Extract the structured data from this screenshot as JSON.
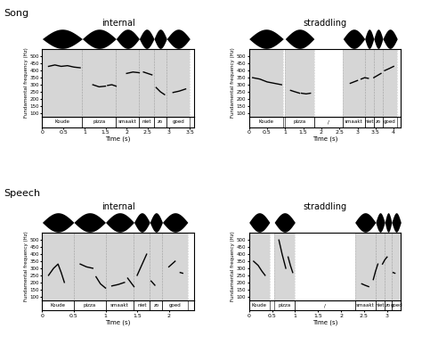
{
  "row_labels": [
    "Song",
    "Speech"
  ],
  "chart_data": [
    {
      "type": "line",
      "title": "internal",
      "xlabel": "Time (s)",
      "ylabel": "Fundamental frequency (Hz)",
      "xlim": [
        0,
        3.6
      ],
      "xticks": [
        0,
        0.5,
        1,
        1.5,
        2,
        2.5,
        3,
        3.5
      ],
      "ylim": [
        75,
        550
      ],
      "yticks": [
        100,
        150,
        200,
        250,
        300,
        350,
        400,
        450,
        500
      ],
      "color": "#000000",
      "x": [
        0.15,
        0.3,
        0.45,
        0.6,
        0.75,
        0.9,
        null,
        1.2,
        1.35,
        1.5,
        null,
        1.55,
        1.65,
        1.75,
        null,
        2.0,
        2.15,
        2.3,
        null,
        2.4,
        2.5,
        2.6,
        null,
        2.7,
        2.8,
        2.9,
        null,
        3.1,
        3.25,
        3.4
      ],
      "values": [
        430,
        440,
        430,
        435,
        425,
        420,
        null,
        300,
        285,
        290,
        null,
        295,
        300,
        290,
        null,
        380,
        390,
        385,
        null,
        390,
        380,
        370,
        null,
        280,
        250,
        230,
        null,
        245,
        255,
        270
      ],
      "segments": [
        {
          "label": "Koude",
          "start": 0.0,
          "end": 0.95
        },
        {
          "label": "pizza",
          "start": 0.95,
          "end": 1.75
        },
        {
          "label": "smaakt",
          "start": 1.75,
          "end": 2.3
        },
        {
          "label": "niet",
          "start": 2.3,
          "end": 2.65
        },
        {
          "label": "zo",
          "start": 2.65,
          "end": 2.95
        },
        {
          "label": "goed",
          "start": 2.95,
          "end": 3.5
        }
      ]
    },
    {
      "type": "line",
      "title": "straddling",
      "xlabel": "Time (s)",
      "ylabel": "Fundamental frequency (Hz)",
      "xlim": [
        0,
        4.2
      ],
      "xticks": [
        0,
        0.5,
        1,
        1.5,
        2,
        2.5,
        3,
        3.5,
        4
      ],
      "ylim": [
        75,
        550
      ],
      "yticks": [
        100,
        150,
        200,
        250,
        300,
        350,
        400,
        450,
        500
      ],
      "color": "#000000",
      "x": [
        0.1,
        0.3,
        0.5,
        0.7,
        0.9,
        null,
        1.15,
        1.27,
        1.4,
        null,
        1.45,
        1.58,
        1.7,
        null,
        2.8,
        2.9,
        3.0,
        null,
        3.1,
        3.2,
        3.3,
        null,
        3.45,
        3.55,
        3.65,
        null,
        3.75,
        3.88,
        4.0
      ],
      "values": [
        350,
        340,
        320,
        310,
        300,
        null,
        260,
        250,
        240,
        null,
        240,
        235,
        240,
        null,
        310,
        320,
        330,
        null,
        340,
        350,
        345,
        null,
        350,
        365,
        380,
        null,
        400,
        415,
        430
      ],
      "segments": [
        {
          "label": "Koude",
          "start": 0.0,
          "end": 0.95
        },
        {
          "label": "pizza",
          "start": 1.0,
          "end": 1.8
        },
        {
          "label": "/",
          "start": 1.8,
          "end": 2.6
        },
        {
          "label": "smaakt",
          "start": 2.6,
          "end": 3.2
        },
        {
          "label": "niet",
          "start": 3.2,
          "end": 3.45
        },
        {
          "label": "zo",
          "start": 3.45,
          "end": 3.7
        },
        {
          "label": "goed",
          "start": 3.7,
          "end": 4.1
        }
      ]
    },
    {
      "type": "line",
      "title": "internal",
      "xlabel": "Time (s)",
      "ylabel": "Fundamental frequency (Hz)",
      "xlim": [
        0,
        2.4
      ],
      "xticks": [
        0,
        0.5,
        1,
        1.5,
        2
      ],
      "ylim": [
        75,
        550
      ],
      "yticks": [
        100,
        150,
        200,
        250,
        300,
        350,
        400,
        450,
        500
      ],
      "color": "#000000",
      "x": [
        0.1,
        0.18,
        0.25,
        0.3,
        0.35,
        null,
        0.6,
        0.7,
        0.8,
        null,
        0.85,
        0.92,
        1.0,
        null,
        1.1,
        1.2,
        1.3,
        null,
        1.35,
        1.4,
        1.45,
        null,
        1.5,
        1.57,
        1.65,
        null,
        1.72,
        1.78,
        null,
        2.0,
        2.05,
        2.1,
        null,
        2.18,
        2.22
      ],
      "values": [
        250,
        300,
        330,
        270,
        200,
        null,
        330,
        310,
        300,
        null,
        240,
        190,
        160,
        null,
        175,
        185,
        200,
        null,
        230,
        200,
        170,
        null,
        250,
        320,
        400,
        null,
        210,
        180,
        null,
        310,
        330,
        350,
        null,
        270,
        265
      ],
      "segments": [
        {
          "label": "Koude",
          "start": 0.0,
          "end": 0.5
        },
        {
          "label": "pizza",
          "start": 0.5,
          "end": 1.0
        },
        {
          "label": "smaakt",
          "start": 1.0,
          "end": 1.45
        },
        {
          "label": "niet",
          "start": 1.45,
          "end": 1.7
        },
        {
          "label": "zo",
          "start": 1.7,
          "end": 1.9
        },
        {
          "label": "goed",
          "start": 1.9,
          "end": 2.3
        }
      ]
    },
    {
      "type": "line",
      "title": "straddling",
      "xlabel": "Time (s)",
      "ylabel": "Fundamental frequency (Hz)",
      "xlim": [
        0,
        3.3
      ],
      "xticks": [
        0,
        0.5,
        1,
        1.5,
        2,
        2.5,
        3
      ],
      "ylim": [
        75,
        550
      ],
      "yticks": [
        100,
        150,
        200,
        250,
        300,
        350,
        400,
        450,
        500
      ],
      "color": "#000000",
      "x": [
        0.1,
        0.2,
        0.28,
        0.35,
        null,
        0.65,
        0.72,
        0.8,
        null,
        0.85,
        0.9,
        0.95,
        null,
        2.45,
        2.52,
        2.6,
        null,
        2.7,
        2.75,
        2.8,
        null,
        2.9,
        2.95,
        3.0,
        null,
        3.13,
        3.17
      ],
      "values": [
        350,
        320,
        280,
        250,
        null,
        500,
        400,
        300,
        null,
        380,
        320,
        270,
        null,
        190,
        180,
        170,
        null,
        220,
        280,
        330,
        null,
        330,
        360,
        380,
        null,
        270,
        265
      ],
      "segments": [
        {
          "label": "Koude",
          "start": 0.0,
          "end": 0.45
        },
        {
          "label": "pizza",
          "start": 0.55,
          "end": 1.0
        },
        {
          "label": "/",
          "start": 1.0,
          "end": 2.3
        },
        {
          "label": "smaakt",
          "start": 2.3,
          "end": 2.75
        },
        {
          "label": "niet",
          "start": 2.75,
          "end": 2.95
        },
        {
          "label": "zo",
          "start": 2.95,
          "end": 3.1
        },
        {
          "label": "goed",
          "start": 3.1,
          "end": 3.3
        }
      ]
    }
  ]
}
